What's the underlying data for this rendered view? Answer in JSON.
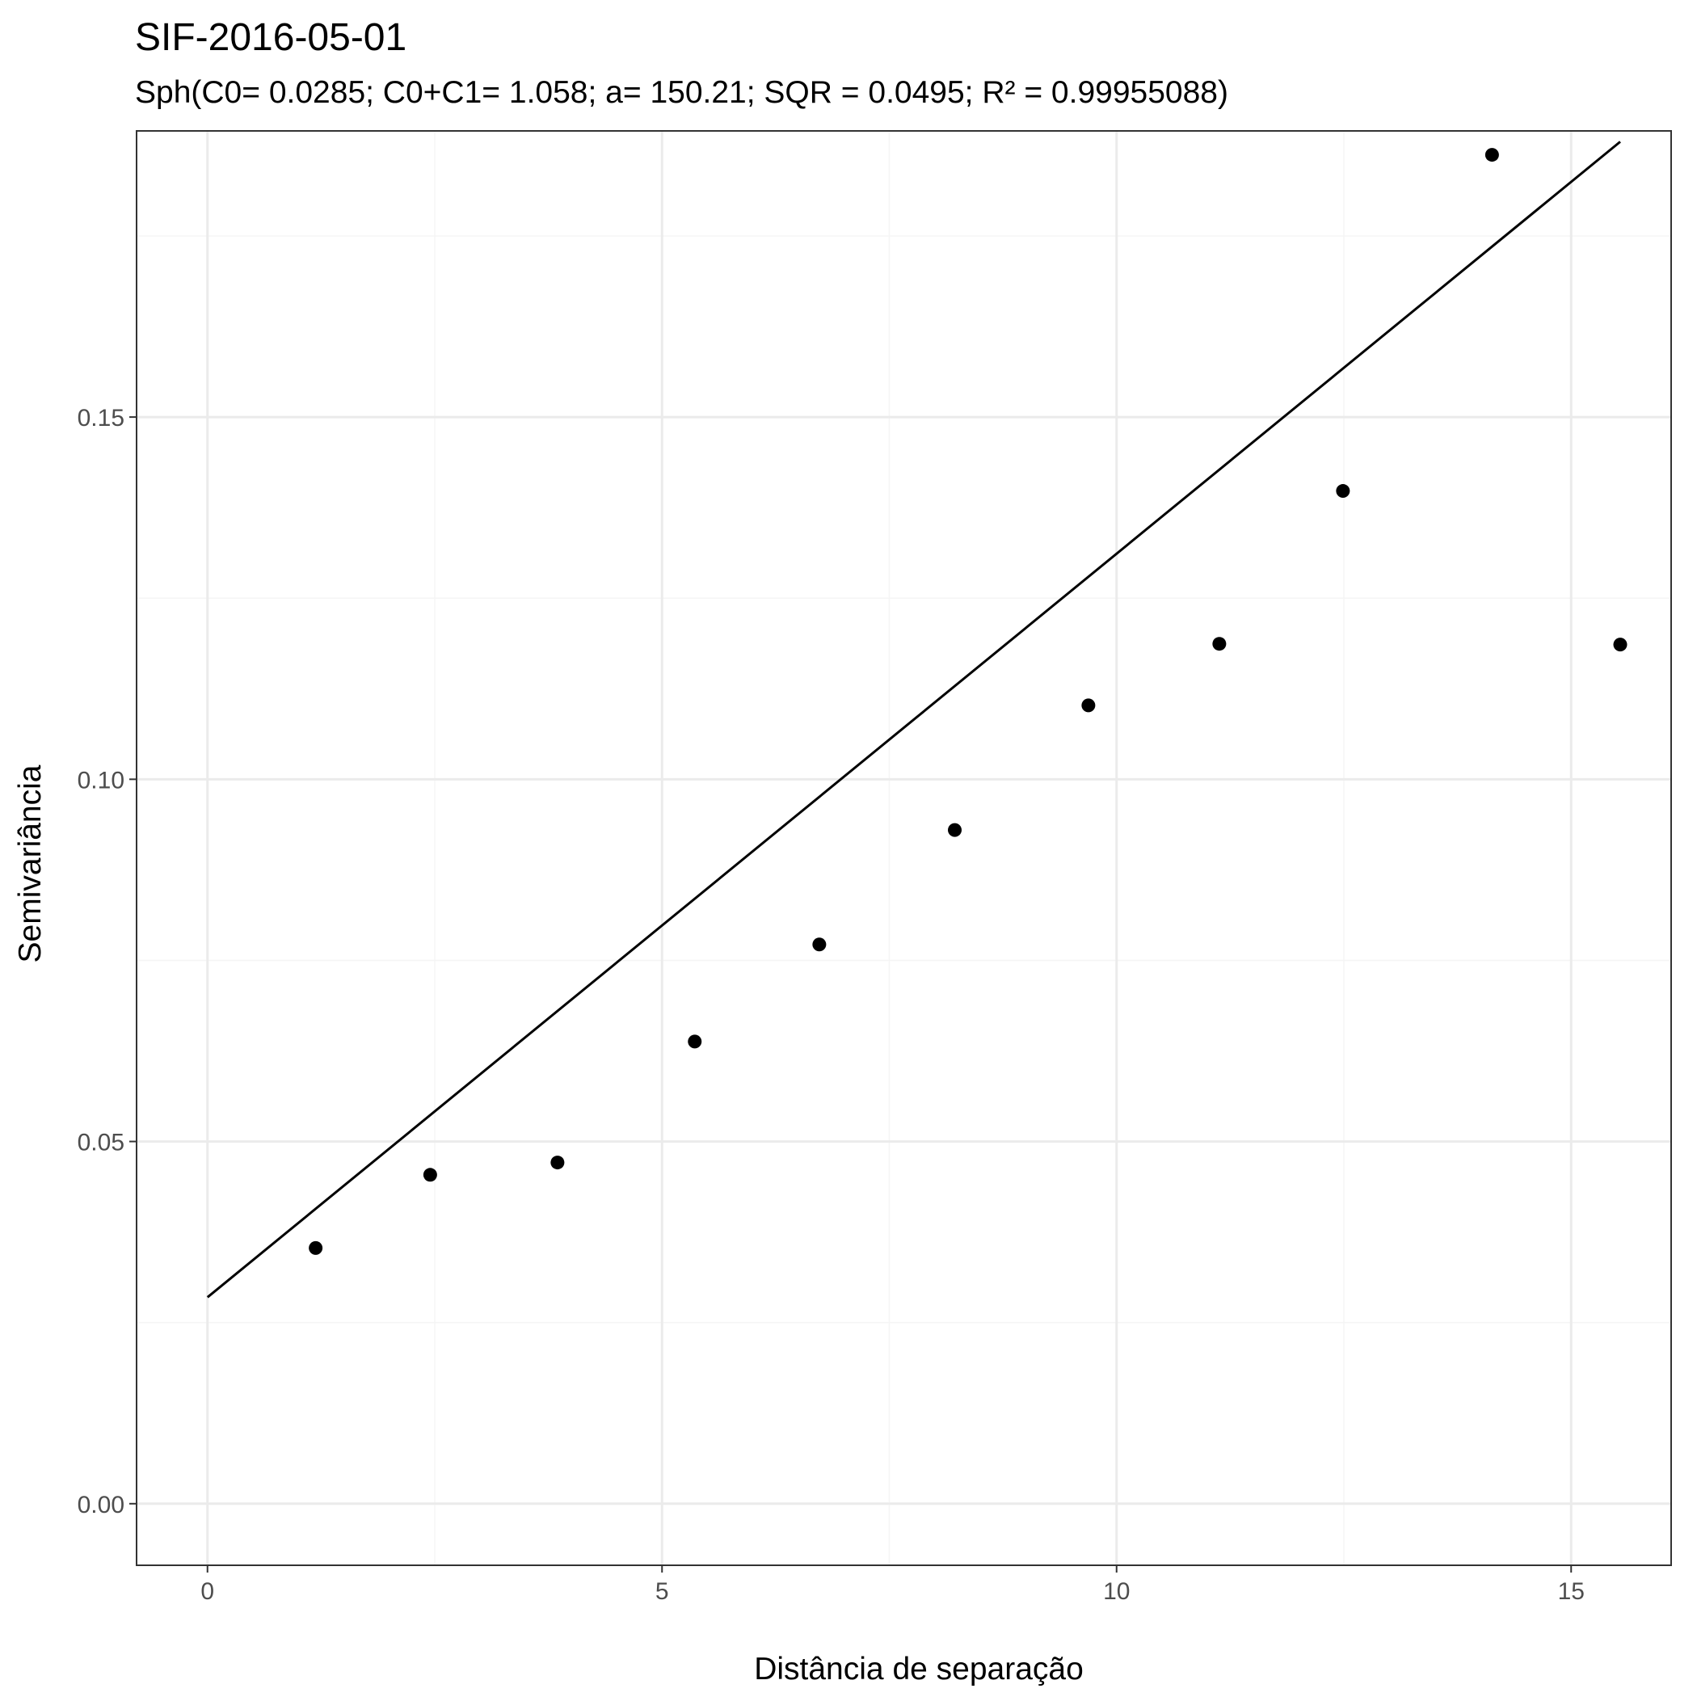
{
  "chart_data": {
    "type": "scatter",
    "title": "SIF-2016-05-01",
    "subtitle": "Sph(C0= 0.0285; C0+C1= 1.058; a= 150.21; SQR = 0.0495; R² = 0.99955088)",
    "xlabel": "Distância de separação",
    "ylabel": "Semivariância",
    "xlim": [
      -0.78,
      16.1
    ],
    "ylim": [
      -0.0085,
      0.1895
    ],
    "x_ticks": [
      0,
      5,
      10,
      15
    ],
    "x_tick_labels": [
      "0",
      "5",
      "10",
      "15"
    ],
    "y_ticks": [
      0.0,
      0.05,
      0.1,
      0.15
    ],
    "y_tick_labels": [
      "0.00",
      "0.05",
      "0.10",
      "0.15"
    ],
    "x_minor_ticks": [
      2.5,
      7.5,
      12.5
    ],
    "y_minor_ticks": [
      0.025,
      0.075,
      0.125,
      0.175
    ],
    "grid": true,
    "legend": "none",
    "series": [
      {
        "type": "scatter",
        "x": [
          1.19,
          2.45,
          3.85,
          5.36,
          6.73,
          8.22,
          9.69,
          11.13,
          12.49,
          14.13,
          15.54
        ],
        "y": [
          0.0353,
          0.0454,
          0.0471,
          0.0638,
          0.0772,
          0.093,
          0.1102,
          0.1187,
          0.1398,
          0.1862,
          0.1186
        ]
      },
      {
        "type": "line",
        "x": [
          0,
          15.54
        ],
        "y": [
          0.0285,
          0.188
        ]
      }
    ]
  },
  "colors": {
    "background": "#ffffff",
    "panel_border": "#333333",
    "grid_major": "#ebebeb",
    "grid_minor": "#f5f5f5",
    "points": "#000000",
    "line": "#000000"
  }
}
